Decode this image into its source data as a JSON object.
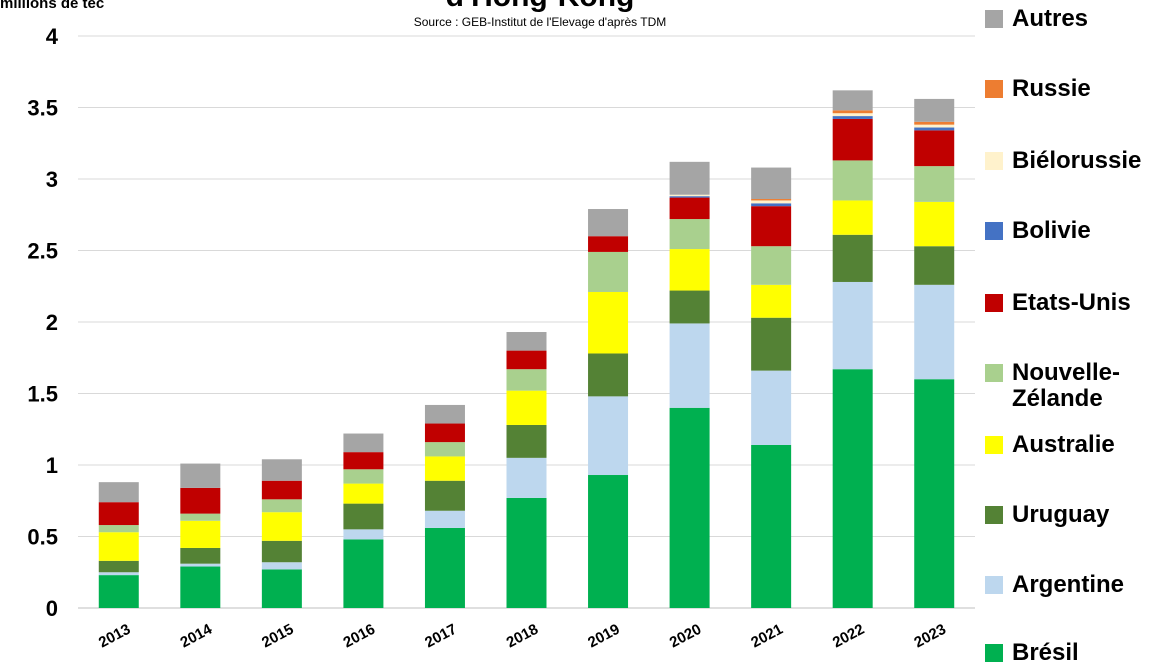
{
  "chart_data": {
    "type": "bar",
    "stacked": true,
    "title": "d'Hong-Kong",
    "subtitle": "Source : GEB-Institut de l'Elevage d'après TDM",
    "ylabel": "millions de tec",
    "xlabel": "",
    "ylim": [
      0,
      4
    ],
    "yticks": [
      "0",
      "0.5",
      "1",
      "1.5",
      "2",
      "2.5",
      "3",
      "3.5",
      "4"
    ],
    "grid": true,
    "legend_position": "right",
    "categories": [
      "2013",
      "2014",
      "2015",
      "2016",
      "2017",
      "2018",
      "2019",
      "2020",
      "2021",
      "2022",
      "2023"
    ],
    "series": [
      {
        "name": "Brésil",
        "color": "#00B050",
        "values": [
          0.23,
          0.29,
          0.27,
          0.48,
          0.56,
          0.77,
          0.93,
          1.4,
          1.14,
          1.67,
          1.6
        ]
      },
      {
        "name": "Argentine",
        "color": "#BDD7EE",
        "values": [
          0.02,
          0.02,
          0.05,
          0.07,
          0.12,
          0.28,
          0.55,
          0.59,
          0.52,
          0.61,
          0.66
        ]
      },
      {
        "name": "Uruguay",
        "color": "#548235",
        "values": [
          0.08,
          0.11,
          0.15,
          0.18,
          0.21,
          0.23,
          0.3,
          0.23,
          0.37,
          0.33,
          0.27
        ]
      },
      {
        "name": "Australie",
        "color": "#FFFF00",
        "values": [
          0.2,
          0.19,
          0.2,
          0.14,
          0.17,
          0.24,
          0.43,
          0.29,
          0.23,
          0.24,
          0.31
        ]
      },
      {
        "name": "Nouvelle-Zélande",
        "color": "#A9D08E",
        "values": [
          0.05,
          0.05,
          0.09,
          0.1,
          0.1,
          0.15,
          0.28,
          0.21,
          0.27,
          0.28,
          0.25
        ]
      },
      {
        "name": "Etats-Unis",
        "color": "#C00000",
        "values": [
          0.16,
          0.18,
          0.13,
          0.12,
          0.13,
          0.13,
          0.11,
          0.15,
          0.28,
          0.29,
          0.25
        ]
      },
      {
        "name": "Bolivie",
        "color": "#4472C4",
        "values": [
          0,
          0,
          0,
          0,
          0,
          0,
          0,
          0.01,
          0.02,
          0.02,
          0.02
        ]
      },
      {
        "name": "Biélorussie",
        "color": "#FFF2CC",
        "values": [
          0,
          0,
          0,
          0,
          0,
          0,
          0,
          0.01,
          0.02,
          0.02,
          0.02
        ]
      },
      {
        "name": "Russie",
        "color": "#ED7D31",
        "values": [
          0,
          0,
          0,
          0,
          0,
          0,
          0,
          0,
          0.01,
          0.02,
          0.02
        ]
      },
      {
        "name": "Autres",
        "color": "#A5A5A5",
        "values": [
          0.14,
          0.17,
          0.15,
          0.13,
          0.13,
          0.13,
          0.19,
          0.23,
          0.22,
          0.14,
          0.16
        ]
      }
    ]
  }
}
